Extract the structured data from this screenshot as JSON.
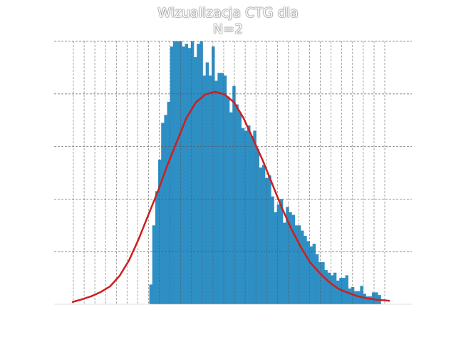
{
  "chart_data": {
    "type": "bar",
    "title_lines": [
      "Wizualizacja CTG dla",
      "N=2"
    ],
    "xlabel": "",
    "ylabel": "",
    "grid": true,
    "grid_style": "dashed",
    "bar_color": "#2e8fc4",
    "curve_color": "#cc1f1f",
    "ylim": [
      0,
      1
    ],
    "xlim": [
      0,
      1
    ],
    "bins": {
      "start": 0.266,
      "width": 0.0083,
      "values": [
        0.075,
        0.3,
        0.43,
        0.55,
        0.69,
        0.72,
        0.77,
        0.98,
        1.0,
        1.0,
        1.0,
        0.98,
        0.99,
        0.975,
        1.0,
        0.94,
        0.99,
        1.0,
        0.87,
        0.92,
        0.87,
        0.98,
        0.85,
        0.88,
        0.88,
        0.87,
        0.79,
        0.73,
        0.83,
        0.76,
        0.73,
        0.67,
        0.66,
        0.68,
        0.64,
        0.66,
        0.59,
        0.52,
        0.53,
        0.48,
        0.49,
        0.41,
        0.35,
        0.38,
        0.4,
        0.31,
        0.37,
        0.35,
        0.34,
        0.3,
        0.3,
        0.28,
        0.26,
        0.24,
        0.22,
        0.23,
        0.19,
        0.16,
        0.16,
        0.13,
        0.12,
        0.11,
        0.12,
        0.09,
        0.1,
        0.1,
        0.11,
        0.06,
        0.065,
        0.05,
        0.05,
        0.07,
        0.04,
        0.03,
        0.03,
        0.045,
        0.045,
        0.035
      ]
    },
    "curve": {
      "x": [
        0.0,
        0.03,
        0.06,
        0.09,
        0.12,
        0.15,
        0.18,
        0.21,
        0.24,
        0.27,
        0.3,
        0.33,
        0.36,
        0.39,
        0.42,
        0.45,
        0.48,
        0.51,
        0.54,
        0.57,
        0.6,
        0.63,
        0.66,
        0.69,
        0.72,
        0.75,
        0.78,
        0.81,
        0.84,
        0.87,
        0.9,
        0.93,
        0.96,
        0.99,
        1.0
      ],
      "y": [
        0.0,
        0.01,
        0.022,
        0.038,
        0.06,
        0.1,
        0.16,
        0.24,
        0.33,
        0.42,
        0.52,
        0.61,
        0.7,
        0.76,
        0.79,
        0.8,
        0.79,
        0.76,
        0.7,
        0.62,
        0.54,
        0.45,
        0.36,
        0.28,
        0.21,
        0.15,
        0.11,
        0.075,
        0.05,
        0.035,
        0.022,
        0.014,
        0.009,
        0.006,
        0.005
      ]
    }
  }
}
